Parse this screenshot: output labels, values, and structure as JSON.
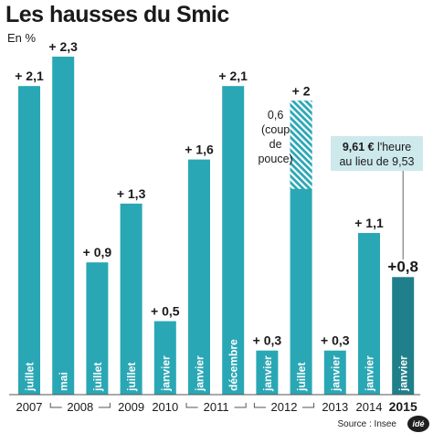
{
  "title": "Les hausses du Smic",
  "unit_label": "En %",
  "source": "Source : Insee",
  "logo_text": "idé",
  "colors": {
    "bar": "#2aa7b5",
    "bar_highlight": "#1f7f8a",
    "annotation_bg": "#cde9ec",
    "hatch": "#ffffff"
  },
  "chart_data": {
    "type": "bar",
    "bars": [
      {
        "month": "juillet",
        "value": 2.1,
        "label": "+ 2,1",
        "year": "2007"
      },
      {
        "month": "mai",
        "value": 2.3,
        "label": "+ 2,3",
        "year": "2008"
      },
      {
        "month": "juillet",
        "value": 0.9,
        "label": "+ 0,9",
        "year": "2008"
      },
      {
        "month": "juillet",
        "value": 1.3,
        "label": "+ 1,3",
        "year": "2009"
      },
      {
        "month": "janvier",
        "value": 0.5,
        "label": "+ 0,5",
        "year": "2010"
      },
      {
        "month": "janvier",
        "value": 1.6,
        "label": "+ 1,6",
        "year": "2011"
      },
      {
        "month": "décembre",
        "value": 2.1,
        "label": "+ 2,1",
        "year": "2011"
      },
      {
        "month": "janvier",
        "value": 0.3,
        "label": "+ 0,3",
        "year": "2012"
      },
      {
        "month": "juillet",
        "value": 2.0,
        "label": "+ 2",
        "year": "2012",
        "coup_de_pouce": 0.6
      },
      {
        "month": "janvier",
        "value": 0.3,
        "label": "+ 0,3",
        "year": "2013"
      },
      {
        "month": "janvier",
        "value": 1.1,
        "label": "+ 1,1",
        "year": "2014"
      },
      {
        "month": "janvier",
        "value": 0.8,
        "label": "+0,8",
        "year": "2015",
        "highlight": true
      }
    ],
    "years": [
      "2007",
      "2008",
      "2009",
      "2010",
      "2011",
      "2012",
      "2013",
      "2014",
      "2015"
    ],
    "ylim": [
      0,
      2.3
    ],
    "grid": false,
    "annotations": {
      "coup_de_pouce": [
        "0,6",
        "(coup",
        "de",
        "pouce)"
      ],
      "hourly_value": "9,61 €",
      "hourly_rest": " l'heure",
      "hourly_line2": "au lieu de 9,53"
    }
  }
}
